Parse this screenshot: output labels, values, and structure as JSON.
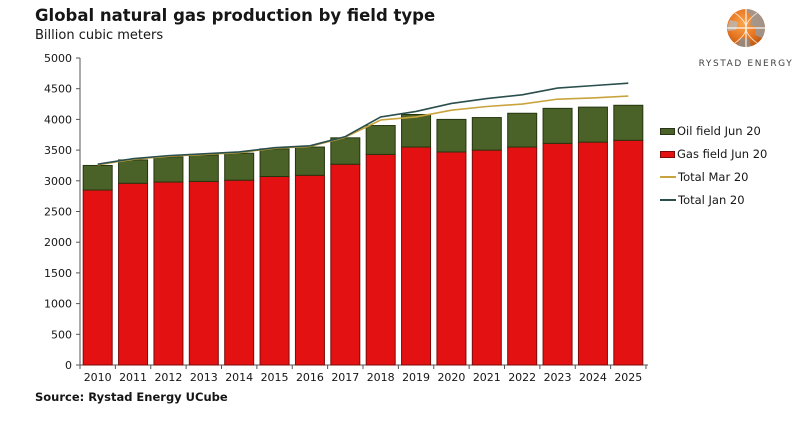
{
  "source": "Source: Rystad Energy UCube",
  "logo": {
    "brand": "RYSTAD ENERGY"
  },
  "colors": {
    "gas_fill": "#e31111",
    "gas_border": "#7d0a0a",
    "oil_fill": "#4a6228",
    "oil_border": "#25360f",
    "mar_line": "#c9a43e",
    "jan_line": "#2a4f4d",
    "axis": "#555555",
    "text": "#161616",
    "logo_orange": "#e87722",
    "logo_gray": "#9a9a9a"
  },
  "chart_data": {
    "type": "bar",
    "title": "Global natural gas production by field type",
    "subtitle": "Billion cubic meters",
    "xlabel": "",
    "ylabel": "Billion cubic meters",
    "ylim": [
      0,
      5000
    ],
    "ytick_step": 500,
    "yticks": [
      0,
      500,
      1000,
      1500,
      2000,
      2500,
      3000,
      3500,
      4000,
      4500,
      5000
    ],
    "grid": false,
    "legend_position": "right",
    "categories": [
      "2010",
      "2011",
      "2012",
      "2013",
      "2014",
      "2015",
      "2016",
      "2017",
      "2018",
      "2019",
      "2020",
      "2021",
      "2022",
      "2023",
      "2024",
      "2025"
    ],
    "series": [
      {
        "name": "Gas field Jun 20",
        "type": "bar",
        "stack": true,
        "color": "#e31111",
        "values": [
          2850,
          2960,
          2980,
          2990,
          3010,
          3070,
          3090,
          3270,
          3430,
          3550,
          3470,
          3500,
          3550,
          3610,
          3630,
          3660
        ]
      },
      {
        "name": "Oil field Jun 20",
        "type": "bar",
        "stack": true,
        "color": "#4a6228",
        "values": [
          400,
          380,
          410,
          430,
          440,
          450,
          460,
          430,
          470,
          530,
          530,
          530,
          550,
          570,
          570,
          570
        ]
      },
      {
        "name": "Total Mar 20",
        "type": "line",
        "color": "#c9a43e",
        "values": [
          3260,
          3350,
          3400,
          3430,
          3460,
          3530,
          3560,
          3710,
          3990,
          4040,
          4150,
          4210,
          4250,
          4330,
          4350,
          4380
        ]
      },
      {
        "name": "Total Jan 20",
        "type": "line",
        "color": "#2a4f4d",
        "values": [
          3270,
          3360,
          3410,
          3440,
          3470,
          3540,
          3570,
          3720,
          4040,
          4130,
          4260,
          4340,
          4400,
          4510,
          4550,
          4590
        ]
      }
    ]
  }
}
